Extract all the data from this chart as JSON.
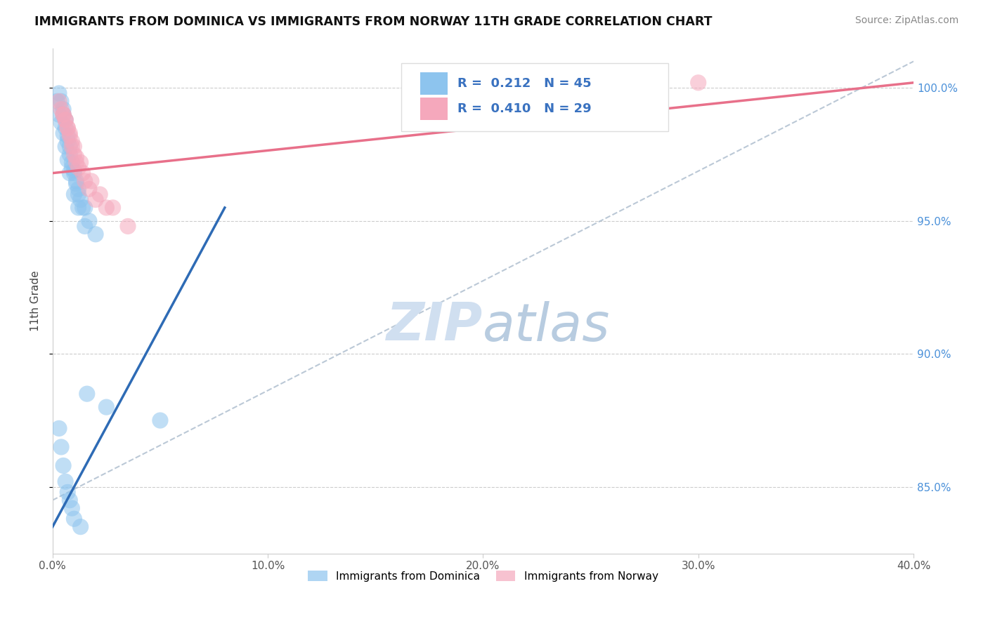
{
  "title": "IMMIGRANTS FROM DOMINICA VS IMMIGRANTS FROM NORWAY 11TH GRADE CORRELATION CHART",
  "source": "Source: ZipAtlas.com",
  "ylabel_label": "11th Grade",
  "legend_r1": "0.212",
  "legend_n1": "45",
  "legend_r2": "0.410",
  "legend_n2": "29",
  "legend_label1": "Immigrants from Dominica",
  "legend_label2": "Immigrants from Norway",
  "color_blue": "#8DC4EE",
  "color_pink": "#F5A8BC",
  "color_blue_line": "#2E6BB5",
  "color_pink_line": "#E8708A",
  "color_gray_dashed": "#AABBCC",
  "color_legend_text": "#3A72C0",
  "watermark_color": "#D0DFF0",
  "xmin": 0.0,
  "xmax": 40.0,
  "ymin": 82.5,
  "ymax": 101.5,
  "blue_line_x0": 0.0,
  "blue_line_y0": 83.5,
  "blue_line_x1": 8.0,
  "blue_line_y1": 95.5,
  "pink_line_x0": 0.0,
  "pink_line_y0": 96.8,
  "pink_line_x1": 40.0,
  "pink_line_y1": 100.2,
  "gray_dash_x0": 0.0,
  "gray_dash_y0": 84.5,
  "gray_dash_x1": 40.0,
  "gray_dash_y1": 101.0,
  "blue_x": [
    0.4,
    0.5,
    0.6,
    0.7,
    0.8,
    0.9,
    1.0,
    1.1,
    1.2,
    1.3,
    1.5,
    1.7,
    2.0,
    0.3,
    0.5,
    0.6,
    0.7,
    0.8,
    0.9,
    1.0,
    1.1,
    1.2,
    1.4,
    0.2,
    0.3,
    0.4,
    0.5,
    0.6,
    0.7,
    0.8,
    1.0,
    1.2,
    1.5,
    2.5,
    5.0,
    0.3,
    0.4,
    0.5,
    0.6,
    0.7,
    0.8,
    0.9,
    1.0,
    1.3,
    1.6
  ],
  "blue_y": [
    99.5,
    99.0,
    98.5,
    98.0,
    97.5,
    97.0,
    96.8,
    96.5,
    96.2,
    95.8,
    95.5,
    95.0,
    94.5,
    99.8,
    99.2,
    98.8,
    98.2,
    97.8,
    97.2,
    96.9,
    96.4,
    96.0,
    95.5,
    99.5,
    99.0,
    98.7,
    98.3,
    97.8,
    97.3,
    96.8,
    96.0,
    95.5,
    94.8,
    88.0,
    87.5,
    87.2,
    86.5,
    85.8,
    85.2,
    84.8,
    84.5,
    84.2,
    83.8,
    83.5,
    88.5
  ],
  "pink_x": [
    0.3,
    0.5,
    0.6,
    0.7,
    0.8,
    0.9,
    1.0,
    1.1,
    1.2,
    1.5,
    1.7,
    2.0,
    2.5,
    3.5,
    0.4,
    0.6,
    0.8,
    1.0,
    1.3,
    1.8,
    2.2,
    2.8,
    20.0,
    30.0,
    0.5,
    0.7,
    0.9,
    1.1,
    1.4
  ],
  "pink_y": [
    99.5,
    99.0,
    98.8,
    98.5,
    98.2,
    97.8,
    97.5,
    97.2,
    97.0,
    96.5,
    96.2,
    95.8,
    95.5,
    94.8,
    99.2,
    98.8,
    98.3,
    97.8,
    97.2,
    96.5,
    96.0,
    95.5,
    100.2,
    100.2,
    99.0,
    98.5,
    98.0,
    97.4,
    96.8
  ]
}
